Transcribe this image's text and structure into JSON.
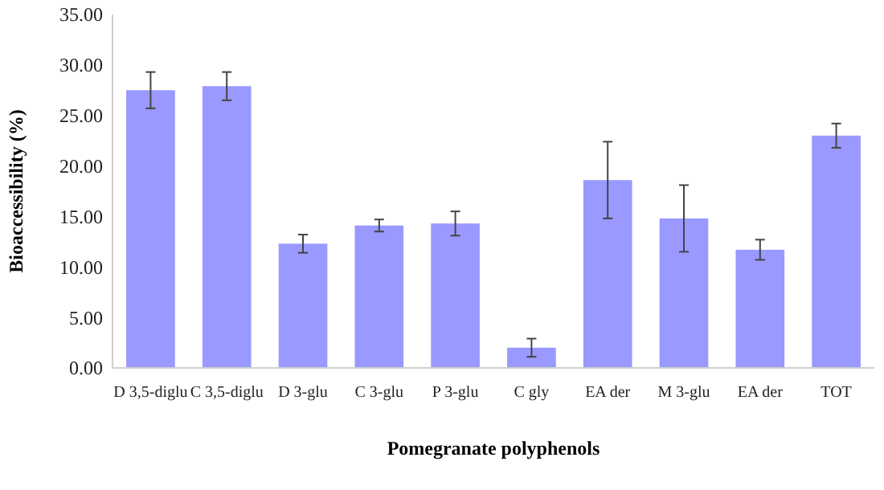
{
  "chart_data": {
    "type": "bar",
    "xlabel": "Pomegranate polyphenols",
    "ylabel": "Bioaccessibility (%)",
    "categories": [
      "D 3,5-diglu",
      "C 3,5-diglu",
      "D 3-glu",
      "C 3-glu",
      "P 3-glu",
      "C gly",
      "EA der",
      "M 3-glu",
      "EA der",
      "TOT"
    ],
    "values": [
      27.5,
      27.9,
      12.3,
      14.1,
      14.3,
      2.0,
      18.6,
      14.8,
      11.7,
      23.0
    ],
    "errors": [
      1.8,
      1.4,
      0.9,
      0.6,
      1.2,
      0.9,
      3.8,
      3.3,
      1.0,
      1.2
    ],
    "color": "#9999ff",
    "ylim": [
      0,
      35
    ],
    "yticks": [
      {
        "value": 0,
        "label": "0.00"
      },
      {
        "value": 5,
        "label": "5.00"
      },
      {
        "value": 10,
        "label": "10.00"
      },
      {
        "value": 15,
        "label": "15.00"
      },
      {
        "value": 20,
        "label": "20.00"
      },
      {
        "value": 25,
        "label": "25.00"
      },
      {
        "value": 30,
        "label": "30.00"
      },
      {
        "value": 35,
        "label": "35.00"
      }
    ],
    "grid": false
  }
}
